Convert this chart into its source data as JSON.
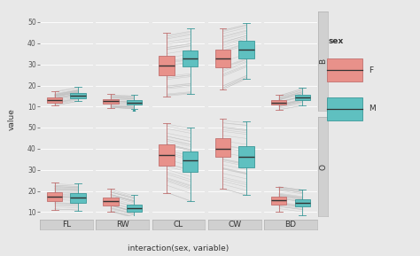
{
  "variables": [
    "FL",
    "RW",
    "CL",
    "CW",
    "BD"
  ],
  "species": [
    "B",
    "O"
  ],
  "sex_colors": {
    "F": "#E8918A",
    "M": "#5FC0C0"
  },
  "sex_edge": {
    "F": "#C07070",
    "M": "#3A9898"
  },
  "median_color": "#333333",
  "background": "#E8E8E8",
  "panel_bg": "#E8E8E8",
  "strip_bg": "#D0D0D0",
  "grid_color": "#FFFFFF",
  "line_color": "#BBBBBB",
  "boxplot_data": {
    "B": {
      "FL": {
        "F": {
          "whislo": 10.5,
          "q1": 12.0,
          "med": 13.0,
          "q3": 14.3,
          "whishi": 17.5
        },
        "M": {
          "whislo": 12.5,
          "q1": 14.0,
          "med": 15.4,
          "q3": 16.5,
          "whishi": 19.5
        }
      },
      "RW": {
        "F": {
          "whislo": 9.5,
          "q1": 11.5,
          "med": 12.5,
          "q3": 13.5,
          "whishi": 16.0
        },
        "M": {
          "whislo": 9.0,
          "q1": 11.0,
          "med": 12.0,
          "q3": 13.2,
          "whishi": 15.5,
          "outliers": [
            8.0
          ]
        }
      },
      "CL": {
        "F": {
          "whislo": 15.0,
          "q1": 25.0,
          "med": 29.5,
          "q3": 34.0,
          "whishi": 45.0
        },
        "M": {
          "whislo": 16.0,
          "q1": 29.0,
          "med": 33.0,
          "q3": 36.5,
          "whishi": 47.0
        }
      },
      "CW": {
        "F": {
          "whislo": 18.0,
          "q1": 28.5,
          "med": 33.0,
          "q3": 37.0,
          "whishi": 47.0
        },
        "M": {
          "whislo": 23.0,
          "q1": 33.0,
          "med": 37.0,
          "q3": 41.0,
          "whishi": 49.5
        }
      },
      "BD": {
        "F": {
          "whislo": 8.5,
          "q1": 11.2,
          "med": 12.0,
          "q3": 13.2,
          "whishi": 15.5
        },
        "M": {
          "whislo": 10.5,
          "q1": 13.0,
          "med": 14.5,
          "q3": 15.8,
          "whishi": 19.0
        }
      }
    },
    "O": {
      "FL": {
        "F": {
          "whislo": 11.0,
          "q1": 15.0,
          "med": 17.5,
          "q3": 19.5,
          "whishi": 24.0
        },
        "M": {
          "whislo": 10.5,
          "q1": 14.5,
          "med": 17.0,
          "q3": 19.0,
          "whishi": 23.5
        }
      },
      "RW": {
        "F": {
          "whislo": 10.0,
          "q1": 13.0,
          "med": 15.0,
          "q3": 17.0,
          "whishi": 21.0
        },
        "M": {
          "whislo": 7.0,
          "q1": 10.0,
          "med": 12.0,
          "q3": 13.5,
          "whishi": 18.0
        }
      },
      "CL": {
        "F": {
          "whislo": 19.0,
          "q1": 32.0,
          "med": 37.0,
          "q3": 42.0,
          "whishi": 52.0
        },
        "M": {
          "whislo": 15.0,
          "q1": 29.0,
          "med": 34.5,
          "q3": 38.5,
          "whishi": 50.0
        }
      },
      "CW": {
        "F": {
          "whislo": 21.0,
          "q1": 36.0,
          "med": 40.0,
          "q3": 45.0,
          "whishi": 54.0
        },
        "M": {
          "whislo": 18.0,
          "q1": 31.0,
          "med": 36.0,
          "q3": 41.0,
          "whishi": 53.0
        }
      },
      "BD": {
        "F": {
          "whislo": 10.0,
          "q1": 13.5,
          "med": 15.5,
          "q3": 17.5,
          "whishi": 22.0
        },
        "M": {
          "whislo": 8.5,
          "q1": 12.5,
          "med": 14.5,
          "q3": 16.0,
          "whishi": 20.5
        }
      }
    }
  },
  "ylim": [
    8,
    55
  ],
  "yticks": [
    10,
    20,
    30,
    40,
    50
  ],
  "xlabel": "interaction(sex, variable)",
  "ylabel": "value",
  "panel_fontsize": 6.5,
  "axis_fontsize": 6.5,
  "tick_fontsize": 5.5,
  "legend_title": "sex",
  "n_lines": 30
}
